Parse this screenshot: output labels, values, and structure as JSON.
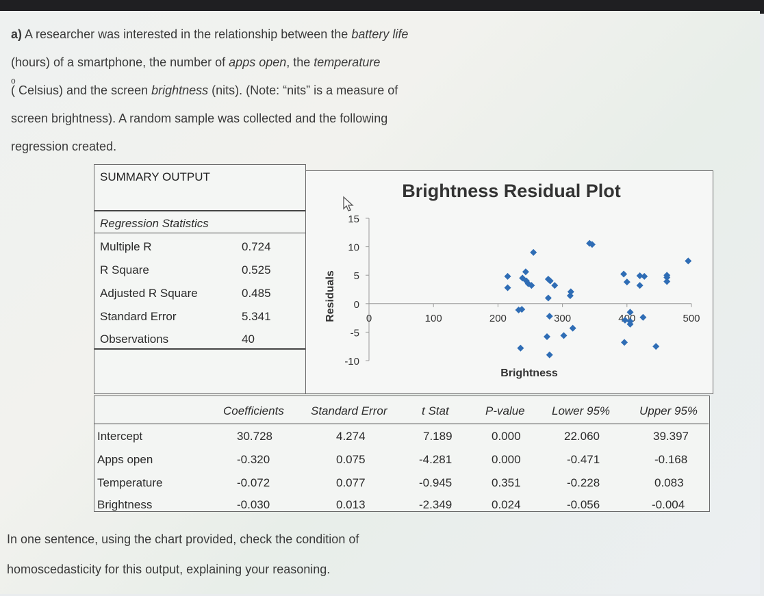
{
  "question": {
    "part_label": "a)",
    "line1_a": " A researcher was interested in the relationship between the ",
    "line1_b": "battery life",
    "line2_a": "(hours) of a smartphone, the number of ",
    "line2_b": "apps open",
    "line2_c": ", the ",
    "line2_d": "temperature",
    "line3_deg": "o",
    "line3_a": "(  Celsius) and the screen ",
    "line3_b": "brightness",
    "line3_c": " (nits). (Note: “nits” is a measure of",
    "line4": "screen brightness). A random sample was collected and the following",
    "line5": "regression created.",
    "bottom1": "In one sentence, using the chart provided, check the condition of",
    "bottom2": "homoscedasticity for this output, explaining your reasoning."
  },
  "summary": {
    "title": "SUMMARY OUTPUT",
    "reg_stats_header": "Regression Statistics",
    "rows": [
      {
        "label": "Multiple R",
        "value": "0.724"
      },
      {
        "label": "R Square",
        "value": "0.525"
      },
      {
        "label": "Adjusted R Square",
        "value": "0.485"
      },
      {
        "label": "Standard Error",
        "value": "5.341"
      },
      {
        "label": "Observations",
        "value": "40"
      }
    ]
  },
  "coefficients": {
    "headers": [
      "Coefficients",
      "Standard Error",
      "t Stat",
      "P-value",
      "Lower 95%",
      "Upper 95%"
    ],
    "rows": [
      {
        "label": "Intercept",
        "values": [
          "30.728",
          "4.274",
          "7.189",
          "0.000",
          "22.060",
          "39.397"
        ]
      },
      {
        "label": "Apps open",
        "values": [
          "-0.320",
          "0.075",
          "-4.281",
          "0.000",
          "-0.471",
          "-0.168"
        ]
      },
      {
        "label": "Temperature",
        "values": [
          "-0.072",
          "0.077",
          "-0.945",
          "0.351",
          "-0.228",
          "0.083"
        ]
      },
      {
        "label": "Brightness",
        "values": [
          "-0.030",
          "0.013",
          "-2.349",
          "0.024",
          "-0.056",
          "-0.004"
        ]
      }
    ]
  },
  "chart_data": {
    "type": "scatter",
    "title": "Brightness  Residual Plot",
    "xlabel": "Brightness",
    "ylabel": "Residuals",
    "xlim": [
      0,
      500
    ],
    "ylim": [
      -10,
      15
    ],
    "x_ticks": [
      "0",
      "100",
      "200",
      "300",
      "400",
      "500"
    ],
    "y_ticks": [
      "15",
      "10",
      "5",
      "0",
      "-5",
      "-10"
    ],
    "marker_color": "#2f6db5",
    "grid": false,
    "legend": "none",
    "x": [
      215,
      215,
      238,
      243,
      244,
      247,
      252,
      255,
      232,
      237,
      235,
      288,
      281,
      313,
      312,
      278,
      280,
      276,
      280,
      316,
      346,
      342,
      278,
      302,
      395,
      400,
      420,
      420,
      427,
      405,
      425,
      405,
      445,
      405,
      462,
      462,
      462,
      495,
      397,
      396
    ],
    "y": [
      4.8,
      2.8,
      4.5,
      5.6,
      4.0,
      3.5,
      3.2,
      9.0,
      -1.1,
      -1.0,
      -7.8,
      3.2,
      4.0,
      2.1,
      1.4,
      1.0,
      -2.2,
      -5.8,
      -9.0,
      -4.3,
      10.4,
      10.6,
      4.3,
      -5.6,
      5.2,
      3.8,
      3.2,
      4.9,
      4.8,
      -1.5,
      -2.4,
      -3.1,
      -7.5,
      -3.6,
      4.6,
      5.0,
      3.9,
      7.5,
      -2.9,
      -6.8
    ]
  }
}
